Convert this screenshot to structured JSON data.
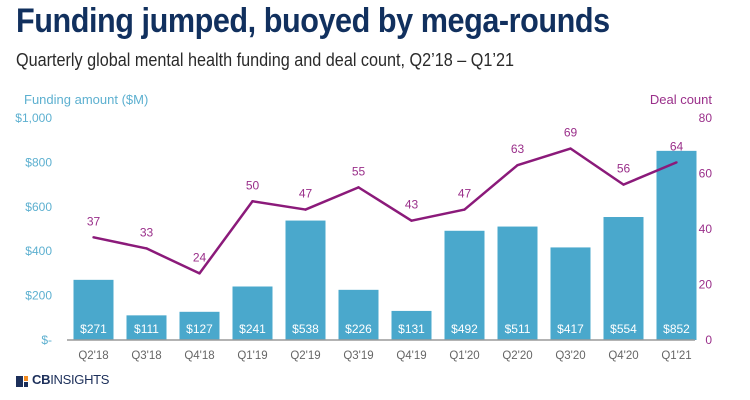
{
  "title": "Funding jumped, buoyed by mega-rounds",
  "subtitle": "Quarterly global mental health funding and deal count, Q2’18 – Q1’21",
  "logo": {
    "brand_bold": "CB",
    "brand_light": "INSIGHTS"
  },
  "colors": {
    "bar": "#4aa8cc",
    "line": "#8b1a7a",
    "left_axis": "#5db0d0",
    "right_axis": "#9a2f8a",
    "title": "#11305e"
  },
  "chart_data": {
    "type": "bar+line",
    "title": "Funding jumped, buoyed by mega-rounds",
    "categories": [
      "Q2'18",
      "Q3'18",
      "Q4'18",
      "Q1'19",
      "Q2'19",
      "Q3'19",
      "Q4'19",
      "Q1'20",
      "Q2'20",
      "Q3'20",
      "Q4'20",
      "Q1'21"
    ],
    "series": [
      {
        "name": "Funding amount ($M)",
        "type": "bar",
        "axis": "left",
        "values": [
          271,
          111,
          127,
          241,
          538,
          226,
          131,
          492,
          511,
          417,
          554,
          852
        ],
        "labels": [
          "$271",
          "$111",
          "$127",
          "$241",
          "$538",
          "$226",
          "$131",
          "$492",
          "$511",
          "$417",
          "$554",
          "$852"
        ]
      },
      {
        "name": "Deal count",
        "type": "line",
        "axis": "right",
        "values": [
          37,
          33,
          24,
          50,
          47,
          55,
          43,
          47,
          63,
          69,
          56,
          64
        ]
      }
    ],
    "ylabel_left": "Funding amount ($M)",
    "ylabel_right": "Deal count",
    "ylim_left": [
      0,
      1000
    ],
    "ylim_right": [
      0,
      80
    ],
    "yticks_left": [
      "$-",
      "$200",
      "$400",
      "$600",
      "$800",
      "$1,000"
    ],
    "yticks_right": [
      "0",
      "20",
      "40",
      "60",
      "80"
    ],
    "grid": false,
    "legend": "none"
  }
}
